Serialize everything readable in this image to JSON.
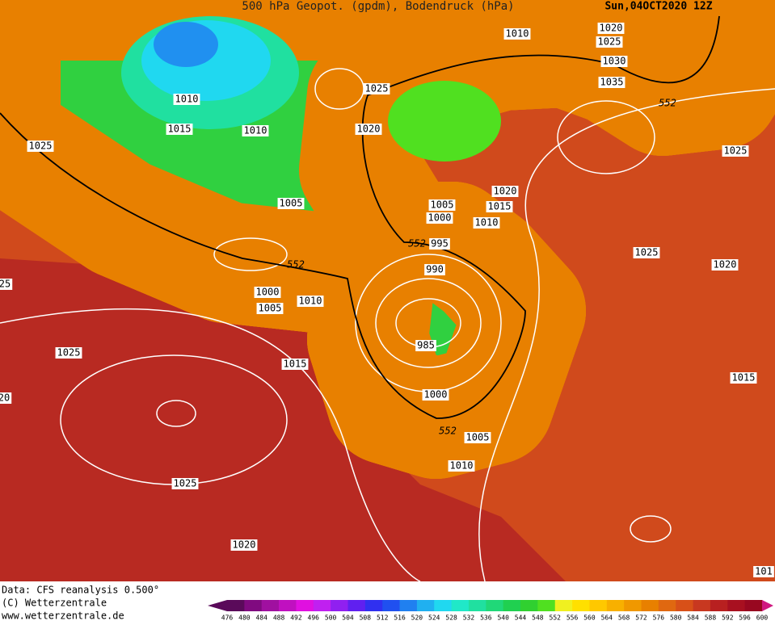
{
  "header": {
    "title": "500 hPa Geopot. (gpdm), Bodendruck (hPa)",
    "date": "Sun,04OCT2020 12Z"
  },
  "isobar_labels": [
    "1010",
    "1020",
    "1025",
    "1030",
    "1035",
    "552",
    "1025",
    "1020",
    "1010",
    "1015",
    "1010",
    "1025",
    "1025",
    "1005",
    "1020",
    "1005",
    "1015",
    "1000",
    "1010",
    "552",
    "995",
    "552",
    "1025",
    "1020",
    "990",
    "25",
    "1000",
    "1005",
    "1010",
    "1025",
    "985",
    "1015",
    "1015",
    "20",
    "1000",
    "552",
    "1005",
    "1010",
    "1025",
    "1020",
    "101"
  ],
  "footer": {
    "source": "Data: CFS reanalysis 0.500°",
    "copyright": "(C) Wetterzentrale",
    "url": "www.wetterzentrale.de"
  },
  "colorbar": {
    "levels": [
      476,
      480,
      484,
      488,
      492,
      496,
      500,
      504,
      508,
      512,
      516,
      520,
      524,
      528,
      532,
      536,
      540,
      544,
      548,
      552,
      556,
      560,
      564,
      568,
      572,
      576,
      580,
      584,
      588,
      592,
      596,
      600
    ],
    "colors": [
      "#5a0a5a",
      "#800a80",
      "#a010a0",
      "#c010c0",
      "#e010e0",
      "#c020f0",
      "#9020f0",
      "#6020f0",
      "#3030f0",
      "#2050f0",
      "#2080f0",
      "#20b0f0",
      "#20d8f0",
      "#20e8c8",
      "#20e0a0",
      "#20d878",
      "#20d050",
      "#30d030",
      "#50e020",
      "#f0f020",
      "#ffe000",
      "#ffc800",
      "#f8b000",
      "#f09800",
      "#e88000",
      "#e06810",
      "#d85018",
      "#c83820",
      "#b82020",
      "#a81020",
      "#980820",
      "#d01880"
    ]
  }
}
